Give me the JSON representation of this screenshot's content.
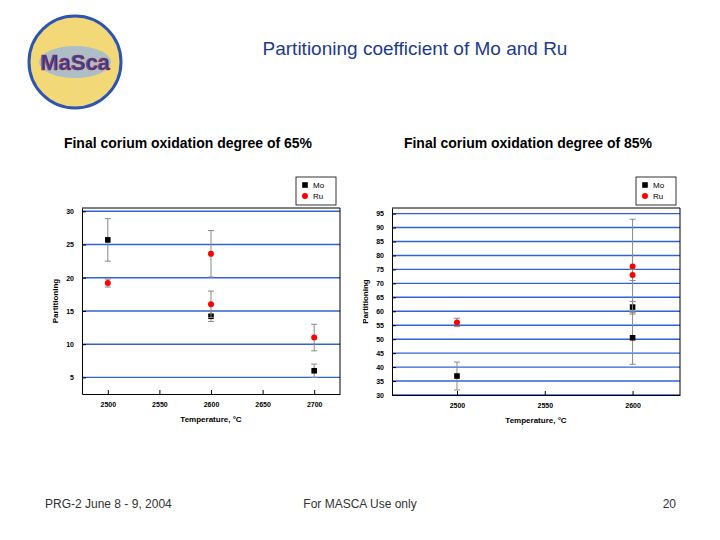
{
  "slide": {
    "title": "Partitioning coefficient of Mo and Ru",
    "logo": "MaSca",
    "footer_left": "PRG-2 June 8 - 9, 2004",
    "footer_center": "For MASCA Use only",
    "page_number": "20"
  },
  "chart_data": [
    {
      "type": "scatter",
      "title": "Final corium oxidation degree of 65%",
      "x_label": "Temperature, °C",
      "y_label": "Partitioning",
      "xlim": [
        2475,
        2725
      ],
      "xticks": [
        2500,
        2550,
        2600,
        2650,
        2700
      ],
      "ylim": [
        2.5,
        30.5
      ],
      "yticks": [
        5,
        10,
        15,
        20,
        25,
        30
      ],
      "grid": "y",
      "legend": "top-right",
      "series": [
        {
          "name": "Mo",
          "color": "#000000",
          "marker": "square",
          "x": [
            2500,
            2600,
            2700
          ],
          "values": [
            25.7,
            14.2,
            6.0
          ],
          "errors": [
            3.2,
            0.8,
            1.0
          ]
        },
        {
          "name": "Ru",
          "color": "#ff0000",
          "marker": "circle",
          "x": [
            2500,
            2600,
            2600,
            2700
          ],
          "values": [
            19.2,
            23.6,
            16.0,
            11.0
          ],
          "errors": [
            0.6,
            3.5,
            2.0,
            2.0
          ]
        }
      ]
    },
    {
      "type": "scatter",
      "title": "Final corium oxidation degree of 85%",
      "x_label": "Temperature, °C",
      "y_label": "Partitioning",
      "xlim": [
        2463,
        2627
      ],
      "xticks": [
        2500,
        2550,
        2600
      ],
      "ylim": [
        30,
        97
      ],
      "yticks": [
        30,
        35,
        40,
        45,
        50,
        55,
        60,
        65,
        70,
        75,
        80,
        85,
        90,
        95
      ],
      "grid": "y",
      "legend": "top-right",
      "series": [
        {
          "name": "Mo",
          "color": "#000000",
          "marker": "square",
          "x": [
            2500,
            2600,
            2600
          ],
          "values": [
            36.8,
            61.5,
            50.5
          ],
          "errors": [
            5.0,
            2.0,
            9.5
          ]
        },
        {
          "name": "Ru",
          "color": "#ff0000",
          "marker": "circle",
          "x": [
            2500,
            2600,
            2600
          ],
          "values": [
            56.0,
            76.0,
            73.0
          ],
          "errors": [
            1.5,
            17.0,
            2.0
          ]
        }
      ]
    }
  ]
}
